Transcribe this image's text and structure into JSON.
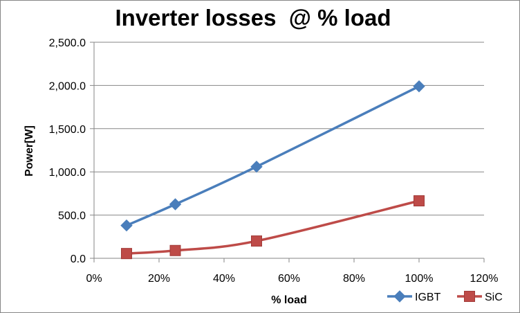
{
  "chart_data": {
    "type": "line",
    "title": "Inverter losses  @ % load",
    "xlabel": "% load",
    "ylabel": "Power[W]",
    "xlim": [
      0,
      120
    ],
    "ylim": [
      0,
      2500
    ],
    "x_ticks": [
      0,
      20,
      40,
      60,
      80,
      100,
      120
    ],
    "x_tick_labels": [
      "0%",
      "20%",
      "40%",
      "60%",
      "80%",
      "100%",
      "120%"
    ],
    "y_ticks": [
      0,
      500,
      1000,
      1500,
      2000,
      2500
    ],
    "y_tick_labels": [
      "0.0",
      "500.0",
      "1,000.0",
      "1,500.0",
      "2,000.0",
      "2,500.0"
    ],
    "grid": true,
    "legend_position": "bottom-right",
    "series": [
      {
        "name": "IGBT",
        "color": "#4a7ebb",
        "marker": "diamond",
        "x": [
          10,
          25,
          50,
          100
        ],
        "y": [
          380,
          625,
          1060,
          1990
        ]
      },
      {
        "name": "SiC",
        "color": "#be4b48",
        "marker": "square",
        "x": [
          10,
          25,
          50,
          100
        ],
        "y": [
          55,
          90,
          200,
          665
        ]
      }
    ]
  }
}
